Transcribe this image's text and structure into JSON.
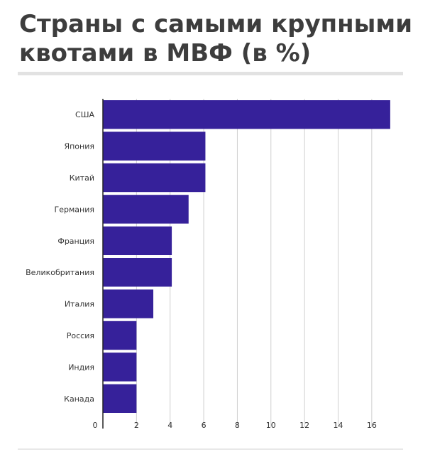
{
  "title": "Страны с самыми крупными квотами в МВФ (в %)",
  "colors": {
    "bar": "#36219a",
    "grid": "#cfcfcf",
    "axis": "#222222"
  },
  "chart_data": {
    "type": "bar",
    "orientation": "horizontal",
    "categories": [
      "США",
      "Япония",
      "Китай",
      "Германия",
      "Франция",
      "Великобритания",
      "Италия",
      "Россия",
      "Индия",
      "Канада"
    ],
    "values": [
      17.1,
      6.1,
      6.1,
      5.1,
      4.1,
      4.1,
      3.0,
      2.0,
      2.0,
      2.0
    ],
    "xticks": [
      0,
      2,
      4,
      6,
      8,
      10,
      12,
      14,
      16
    ],
    "xlim": [
      0,
      17.4
    ],
    "grid": true
  }
}
